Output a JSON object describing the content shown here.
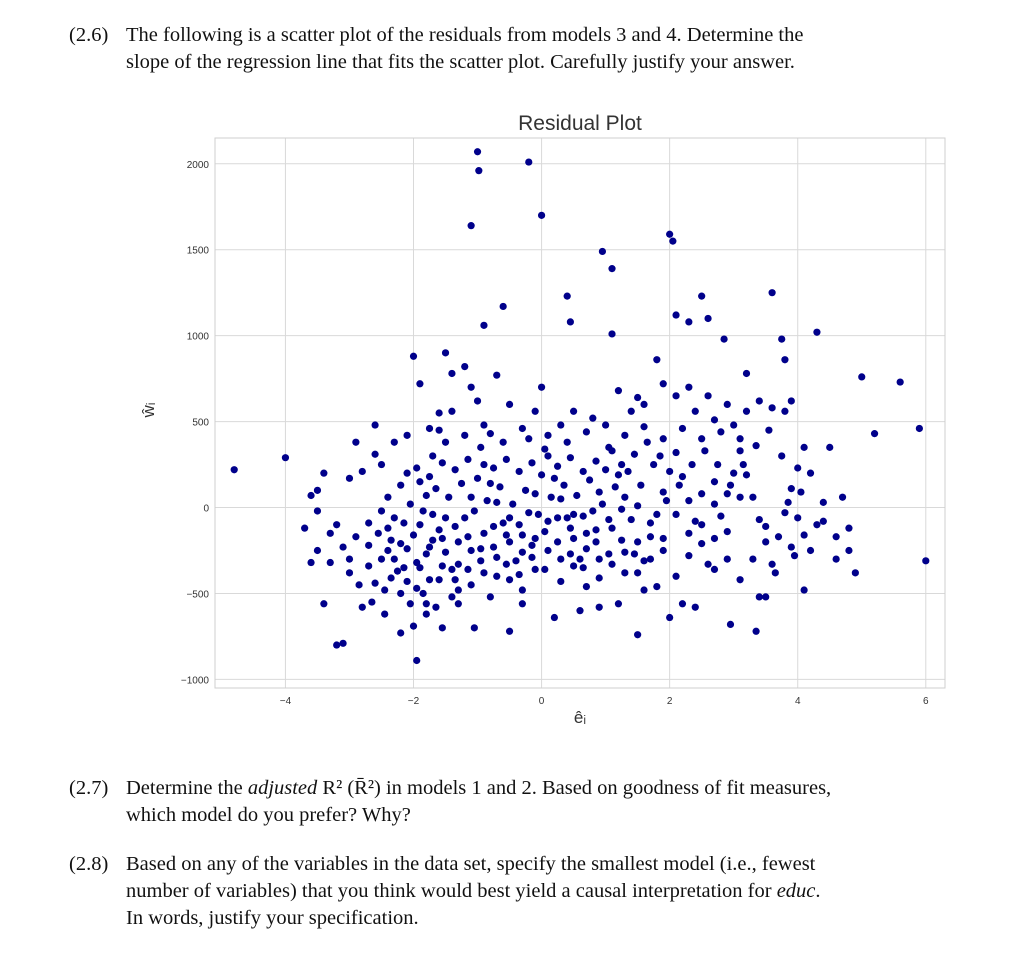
{
  "questions": [
    {
      "number": "(2.6)",
      "lines": [
        "The following is a scatter plot of the residuals from models 3 and 4.  Determine the",
        "slope of the regression line that fits the scatter plot.  Carefully justify your answer."
      ]
    },
    {
      "number": "(2.7)",
      "line1_pre": "Determine the ",
      "line1_em": "adjusted",
      "line1_post": " R² (R̄²) in models 1 and 2.  Based on goodness of fit measures,",
      "line2": "which model do you prefer?  Why?"
    },
    {
      "number": "(2.8)",
      "line1": "Based on any of the variables in the data set, specify the smallest model (i.e., fewest",
      "line2_pre": "number of variables) that you think would best yield a causal interpretation for ",
      "line2_em": "educ",
      "line2_post": ".",
      "line3": "In words, justify your specification."
    }
  ],
  "chart_data": {
    "type": "scatter",
    "title": "Residual Plot",
    "xlabel": "êᵢ",
    "ylabel": "ŵᵢ",
    "xlim": [
      -5.1,
      6.3
    ],
    "ylim": [
      -1050,
      2150
    ],
    "xticks": [
      -4,
      -2,
      0,
      2,
      4,
      6
    ],
    "yticks": [
      -1000,
      -500,
      0,
      500,
      1000,
      1500,
      2000
    ],
    "xtick_labels": [
      "−4",
      "−2",
      "0",
      "2",
      "4",
      "6"
    ],
    "ytick_labels": [
      "−1000",
      "−500",
      "0",
      "500",
      "1000",
      "1500",
      "2000"
    ],
    "grid": true,
    "point_color": "#00008b",
    "points": [
      [
        -4.8,
        220
      ],
      [
        -4.0,
        290
      ],
      [
        -3.5,
        100
      ],
      [
        -3.5,
        -20
      ],
      [
        -3.4,
        200
      ],
      [
        -3.3,
        -320
      ],
      [
        -3.2,
        -800
      ],
      [
        -3.1,
        -790
      ],
      [
        -3.0,
        170
      ],
      [
        -2.9,
        380
      ],
      [
        -2.8,
        -580
      ],
      [
        -2.7,
        -340
      ],
      [
        -2.6,
        480
      ],
      [
        -2.5,
        250
      ],
      [
        -2.45,
        -620
      ],
      [
        -2.4,
        -250
      ],
      [
        -2.3,
        380
      ],
      [
        -2.2,
        -730
      ],
      [
        -2.1,
        420
      ],
      [
        -2.0,
        -690
      ],
      [
        -2.0,
        880
      ],
      [
        -1.95,
        -890
      ],
      [
        -1.9,
        720
      ],
      [
        -1.8,
        -620
      ],
      [
        -1.75,
        460
      ],
      [
        -1.6,
        550
      ],
      [
        -1.55,
        -700
      ],
      [
        -1.5,
        900
      ],
      [
        -1.4,
        780
      ],
      [
        -1.3,
        -480
      ],
      [
        -1.2,
        820
      ],
      [
        -1.1,
        700
      ],
      [
        -1.05,
        -700
      ],
      [
        -1.0,
        2070
      ],
      [
        -0.98,
        1960
      ],
      [
        -1.1,
        1640
      ],
      [
        -0.9,
        1060
      ],
      [
        -0.6,
        1170
      ],
      [
        -0.7,
        770
      ],
      [
        -0.5,
        -720
      ],
      [
        -0.2,
        2010
      ],
      [
        0.0,
        1700
      ],
      [
        0.0,
        700
      ],
      [
        0.4,
        1230
      ],
      [
        0.45,
        1080
      ],
      [
        0.95,
        1490
      ],
      [
        1.1,
        1390
      ],
      [
        1.1,
        1010
      ],
      [
        1.5,
        640
      ],
      [
        1.5,
        -740
      ],
      [
        1.8,
        860
      ],
      [
        2.0,
        1590
      ],
      [
        2.05,
        1550
      ],
      [
        2.1,
        1120
      ],
      [
        2.3,
        1080
      ],
      [
        2.5,
        1230
      ],
      [
        2.6,
        1100
      ],
      [
        2.85,
        980
      ],
      [
        2.95,
        -680
      ],
      [
        3.2,
        780
      ],
      [
        3.35,
        -720
      ],
      [
        3.6,
        1250
      ],
      [
        3.75,
        980
      ],
      [
        3.8,
        860
      ],
      [
        3.9,
        620
      ],
      [
        4.1,
        -480
      ],
      [
        4.3,
        1020
      ],
      [
        4.5,
        350
      ],
      [
        4.8,
        -250
      ],
      [
        4.9,
        -380
      ],
      [
        5.0,
        760
      ],
      [
        5.2,
        430
      ],
      [
        5.6,
        730
      ],
      [
        5.9,
        460
      ],
      [
        6.0,
        -310
      ],
      [
        4.6,
        -170
      ],
      [
        4.7,
        60
      ],
      [
        4.2,
        200
      ],
      [
        3.4,
        -520
      ],
      [
        3.5,
        -520
      ],
      [
        2.7,
        -360
      ],
      [
        2.4,
        -580
      ],
      [
        2.2,
        -560
      ],
      [
        2.0,
        -640
      ],
      [
        1.8,
        -460
      ],
      [
        1.6,
        -480
      ],
      [
        1.2,
        -560
      ],
      [
        0.9,
        -580
      ],
      [
        0.6,
        -600
      ],
      [
        0.2,
        -640
      ],
      [
        -0.3,
        -560
      ],
      [
        -0.8,
        -520
      ],
      [
        -1.3,
        -560
      ],
      [
        -1.8,
        -560
      ],
      [
        -2.2,
        -500
      ],
      [
        -2.6,
        -440
      ],
      [
        -3.0,
        -380
      ],
      [
        -3.4,
        -560
      ],
      [
        -3.6,
        -320
      ],
      [
        -3.7,
        -120
      ],
      [
        -3.6,
        70
      ],
      [
        -3.3,
        -150
      ],
      [
        -3.1,
        -230
      ],
      [
        -2.9,
        -170
      ],
      [
        -2.7,
        -90
      ],
      [
        -2.5,
        -20
      ],
      [
        -2.4,
        60
      ],
      [
        -2.2,
        130
      ],
      [
        -2.1,
        200
      ],
      [
        -1.9,
        150
      ],
      [
        -1.8,
        70
      ],
      [
        -1.7,
        -40
      ],
      [
        -1.6,
        -130
      ],
      [
        -1.5,
        -260
      ],
      [
        -1.4,
        -360
      ],
      [
        -1.3,
        -200
      ],
      [
        -1.2,
        -60
      ],
      [
        -1.1,
        60
      ],
      [
        -1.0,
        170
      ],
      [
        -0.9,
        250
      ],
      [
        -0.8,
        140
      ],
      [
        -0.7,
        30
      ],
      [
        -0.6,
        -90
      ],
      [
        -0.5,
        -200
      ],
      [
        -0.4,
        -310
      ],
      [
        -0.3,
        -160
      ],
      [
        -0.2,
        -30
      ],
      [
        -0.1,
        80
      ],
      [
        0.0,
        190
      ],
      [
        0.1,
        300
      ],
      [
        0.2,
        170
      ],
      [
        0.3,
        50
      ],
      [
        0.4,
        -60
      ],
      [
        0.5,
        -180
      ],
      [
        0.6,
        -300
      ],
      [
        0.7,
        -150
      ],
      [
        0.8,
        -20
      ],
      [
        0.9,
        90
      ],
      [
        1.0,
        220
      ],
      [
        1.1,
        330
      ],
      [
        1.2,
        190
      ],
      [
        1.3,
        60
      ],
      [
        1.4,
        -70
      ],
      [
        1.5,
        -200
      ],
      [
        1.6,
        -310
      ],
      [
        1.7,
        -170
      ],
      [
        1.8,
        -40
      ],
      [
        1.9,
        90
      ],
      [
        2.0,
        210
      ],
      [
        2.1,
        320
      ],
      [
        2.2,
        180
      ],
      [
        2.3,
        40
      ],
      [
        2.4,
        -80
      ],
      [
        2.5,
        -210
      ],
      [
        2.6,
        -330
      ],
      [
        2.7,
        -180
      ],
      [
        2.8,
        -50
      ],
      [
        2.9,
        80
      ],
      [
        3.0,
        200
      ],
      [
        3.1,
        330
      ],
      [
        3.2,
        190
      ],
      [
        3.3,
        60
      ],
      [
        3.4,
        -70
      ],
      [
        3.5,
        -200
      ],
      [
        3.6,
        -330
      ],
      [
        3.7,
        -170
      ],
      [
        3.8,
        -30
      ],
      [
        3.9,
        110
      ],
      [
        4.0,
        230
      ],
      [
        4.1,
        350
      ],
      [
        4.2,
        -250
      ],
      [
        4.3,
        -100
      ],
      [
        4.4,
        30
      ],
      [
        -2.8,
        210
      ],
      [
        -2.6,
        310
      ],
      [
        -2.3,
        -300
      ],
      [
        -2.1,
        -430
      ],
      [
        -1.9,
        -350
      ],
      [
        -1.7,
        300
      ],
      [
        -1.5,
        380
      ],
      [
        -1.2,
        420
      ],
      [
        -0.9,
        480
      ],
      [
        -0.6,
        380
      ],
      [
        -0.3,
        460
      ],
      [
        0.1,
        420
      ],
      [
        0.4,
        380
      ],
      [
        0.7,
        440
      ],
      [
        1.0,
        480
      ],
      [
        1.3,
        420
      ],
      [
        1.6,
        470
      ],
      [
        1.9,
        400
      ],
      [
        2.2,
        460
      ],
      [
        2.5,
        400
      ],
      [
        2.8,
        440
      ],
      [
        3.1,
        400
      ],
      [
        3.4,
        620
      ],
      [
        3.6,
        580
      ],
      [
        3.8,
        560
      ],
      [
        1.2,
        680
      ],
      [
        1.6,
        600
      ],
      [
        1.9,
        720
      ],
      [
        2.1,
        650
      ],
      [
        2.4,
        560
      ],
      [
        2.7,
        510
      ],
      [
        0.5,
        560
      ],
      [
        0.8,
        520
      ],
      [
        -0.1,
        560
      ],
      [
        -0.5,
        600
      ],
      [
        -1.0,
        620
      ],
      [
        -1.4,
        560
      ],
      [
        -2.0,
        -160
      ],
      [
        -2.2,
        -210
      ],
      [
        -2.4,
        -120
      ],
      [
        -1.8,
        -270
      ],
      [
        -1.6,
        -420
      ],
      [
        -1.4,
        -520
      ],
      [
        -1.1,
        -450
      ],
      [
        -0.9,
        -380
      ],
      [
        -0.7,
        -290
      ],
      [
        -0.5,
        -420
      ],
      [
        -0.3,
        -480
      ],
      [
        -0.1,
        -360
      ],
      [
        0.1,
        -250
      ],
      [
        0.3,
        -430
      ],
      [
        0.5,
        -340
      ],
      [
        0.7,
        -460
      ],
      [
        0.9,
        -410
      ],
      [
        1.1,
        -330
      ],
      [
        1.3,
        -260
      ],
      [
        1.5,
        -380
      ],
      [
        1.7,
        -300
      ],
      [
        1.9,
        -250
      ],
      [
        2.1,
        -400
      ],
      [
        2.3,
        -280
      ],
      [
        2.5,
        -100
      ],
      [
        2.7,
        20
      ],
      [
        2.9,
        -300
      ],
      [
        3.1,
        -420
      ],
      [
        3.3,
        -300
      ],
      [
        3.5,
        -110
      ],
      [
        -2.7,
        -220
      ],
      [
        -2.5,
        -300
      ],
      [
        -2.3,
        -60
      ],
      [
        -2.1,
        -240
      ],
      [
        -1.9,
        -100
      ],
      [
        -1.7,
        -190
      ],
      [
        -1.5,
        -60
      ],
      [
        -1.3,
        -330
      ],
      [
        -1.1,
        -250
      ],
      [
        -0.9,
        -150
      ],
      [
        -0.7,
        -400
      ],
      [
        -0.5,
        -60
      ],
      [
        -0.3,
        -260
      ],
      [
        -0.1,
        -180
      ],
      [
        0.1,
        -80
      ],
      [
        0.3,
        -300
      ],
      [
        0.5,
        -40
      ],
      [
        0.7,
        -240
      ],
      [
        0.9,
        -300
      ],
      [
        1.1,
        -120
      ],
      [
        1.3,
        -380
      ],
      [
        1.5,
        10
      ],
      [
        1.7,
        -90
      ],
      [
        1.9,
        -180
      ],
      [
        2.1,
        -40
      ],
      [
        2.3,
        -150
      ],
      [
        2.5,
        80
      ],
      [
        2.7,
        150
      ],
      [
        2.9,
        -140
      ],
      [
        3.1,
        60
      ],
      [
        -2.05,
        20
      ],
      [
        -1.85,
        -20
      ],
      [
        -1.65,
        110
      ],
      [
        -1.45,
        60
      ],
      [
        -1.25,
        140
      ],
      [
        -1.05,
        -20
      ],
      [
        -0.85,
        40
      ],
      [
        -0.65,
        120
      ],
      [
        -0.45,
        20
      ],
      [
        -0.25,
        100
      ],
      [
        -0.05,
        -40
      ],
      [
        0.15,
        60
      ],
      [
        0.35,
        130
      ],
      [
        0.55,
        70
      ],
      [
        0.75,
        160
      ],
      [
        0.95,
        20
      ],
      [
        1.15,
        120
      ],
      [
        1.35,
        210
      ],
      [
        1.55,
        130
      ],
      [
        1.75,
        250
      ],
      [
        1.95,
        40
      ],
      [
        2.15,
        130
      ],
      [
        2.35,
        250
      ],
      [
        2.55,
        330
      ],
      [
        2.75,
        250
      ],
      [
        2.95,
        130
      ],
      [
        3.15,
        250
      ],
      [
        3.35,
        360
      ],
      [
        3.55,
        450
      ],
      [
        3.75,
        300
      ],
      [
        -1.95,
        230
      ],
      [
        -1.75,
        180
      ],
      [
        -1.55,
        260
      ],
      [
        -1.35,
        220
      ],
      [
        -1.15,
        280
      ],
      [
        -0.95,
        350
      ],
      [
        -0.75,
        230
      ],
      [
        -0.55,
        280
      ],
      [
        -0.35,
        210
      ],
      [
        -0.15,
        260
      ],
      [
        0.05,
        340
      ],
      [
        0.25,
        240
      ],
      [
        0.45,
        290
      ],
      [
        0.65,
        210
      ],
      [
        0.85,
        270
      ],
      [
        1.05,
        350
      ],
      [
        1.25,
        250
      ],
      [
        1.45,
        310
      ],
      [
        1.65,
        380
      ],
      [
        1.85,
        300
      ],
      [
        -2.35,
        -410
      ],
      [
        -2.15,
        -350
      ],
      [
        -1.95,
        -470
      ],
      [
        -1.75,
        -420
      ],
      [
        -1.55,
        -340
      ],
      [
        -1.35,
        -420
      ],
      [
        -1.15,
        -360
      ],
      [
        -0.95,
        -310
      ],
      [
        -0.75,
        -230
      ],
      [
        -0.55,
        -330
      ],
      [
        -0.35,
        -390
      ],
      [
        -0.15,
        -290
      ],
      [
        0.05,
        -360
      ],
      [
        0.25,
        -200
      ],
      [
        0.45,
        -270
      ],
      [
        0.65,
        -350
      ],
      [
        0.85,
        -200
      ],
      [
        1.05,
        -270
      ],
      [
        1.25,
        -190
      ],
      [
        1.45,
        -270
      ],
      [
        -2.55,
        -150
      ],
      [
        -2.35,
        -190
      ],
      [
        -2.15,
        -90
      ],
      [
        -1.95,
        -320
      ],
      [
        -1.75,
        -230
      ],
      [
        -1.55,
        -180
      ],
      [
        -1.35,
        -110
      ],
      [
        -1.15,
        -170
      ],
      [
        -0.95,
        -240
      ],
      [
        -0.75,
        -110
      ],
      [
        -0.55,
        -160
      ],
      [
        -0.35,
        -100
      ],
      [
        -0.15,
        -220
      ],
      [
        0.05,
        -140
      ],
      [
        0.25,
        -60
      ],
      [
        0.45,
        -120
      ],
      [
        0.65,
        -50
      ],
      [
        0.85,
        -130
      ],
      [
        1.05,
        -70
      ],
      [
        1.25,
        -10
      ],
      [
        -3.5,
        -250
      ],
      [
        -3.2,
        -100
      ],
      [
        -3.0,
        -300
      ],
      [
        -2.85,
        -450
      ],
      [
        -2.65,
        -550
      ],
      [
        -2.45,
        -480
      ],
      [
        -2.25,
        -370
      ],
      [
        -2.05,
        -560
      ],
      [
        -1.85,
        -500
      ],
      [
        -1.65,
        -580
      ],
      [
        3.9,
        -230
      ],
      [
        4.0,
        -60
      ],
      [
        4.1,
        -160
      ],
      [
        4.4,
        -80
      ],
      [
        4.6,
        -300
      ],
      [
        4.8,
        -120
      ],
      [
        4.05,
        90
      ],
      [
        3.95,
        -280
      ],
      [
        3.85,
        30
      ],
      [
        3.65,
        -380
      ],
      [
        2.6,
        650
      ],
      [
        2.9,
        600
      ],
      [
        3.2,
        560
      ],
      [
        3.0,
        480
      ],
      [
        2.3,
        700
      ],
      [
        1.4,
        560
      ],
      [
        0.3,
        480
      ],
      [
        -0.2,
        400
      ],
      [
        -0.8,
        430
      ],
      [
        -1.6,
        450
      ]
    ]
  }
}
